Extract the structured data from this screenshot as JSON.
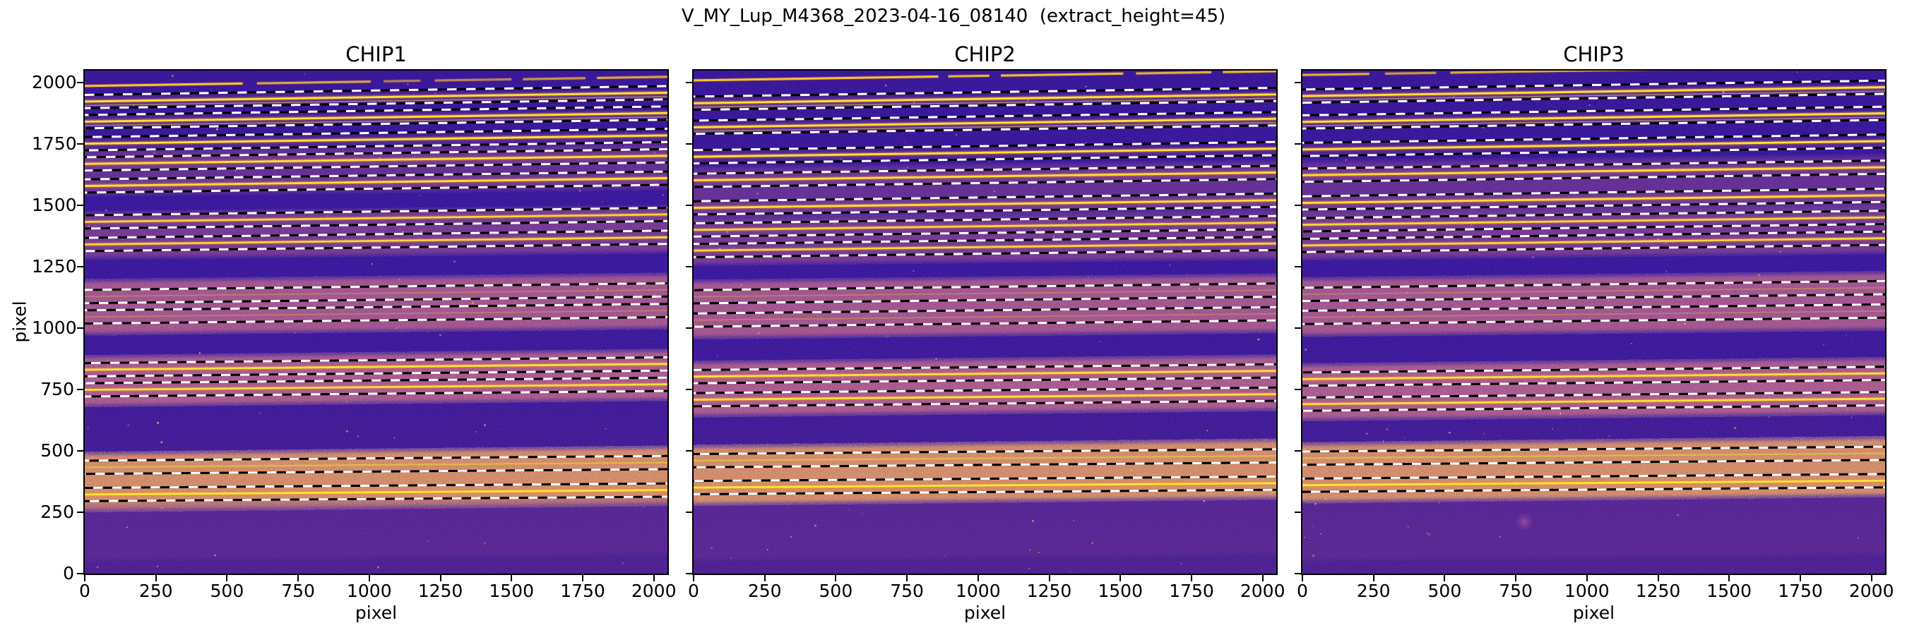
{
  "title": "V_MY_Lup_M4368_2023-04-16_08140  (extract_height=45)",
  "axes": {
    "xlabel": "pixel",
    "ylabel": "pixel",
    "xticks": [
      0,
      250,
      500,
      750,
      1000,
      1250,
      1500,
      1750,
      2000
    ],
    "yticks": [
      0,
      250,
      500,
      750,
      1000,
      1250,
      1500,
      1750,
      2000
    ],
    "xlim": [
      0,
      2048
    ],
    "ylim": [
      0,
      2048
    ]
  },
  "colors": {
    "figure_bg": "#ffffff",
    "text": "#000000",
    "detector_dark_top": "#2a0a90",
    "detector_dark_mid": "#2d0c94",
    "detector_purple_bottom": "#421687",
    "band_pink": "#b2518a",
    "band_orange": "#d9844f",
    "band_haze": "#6f2f9a",
    "trace_yellow": "#f9e52f",
    "trace_mid": "#e8c33f",
    "trace_faint": "#cf9e52",
    "trace_glow": "#ff8c2a",
    "partial_trace": "#f5c62c",
    "companion_trace": "#f0d34a",
    "dash_black": "#000000",
    "dash_white": "#ffffff",
    "blob_pink": "#a553a3",
    "speckle_warm": "#ffb860",
    "speckle_purple": "#8044d6",
    "speckle_dark": "#240540"
  },
  "chart_data": {
    "type": "heatmap",
    "colormap": "plasma",
    "extract_height": 45,
    "panels": [
      {
        "title": "CHIP1",
        "partial_trace": {
          "y": 1985,
          "segments": [
            [
              0,
              555,
              1
            ],
            [
              605,
              1005,
              0.8
            ],
            [
              1050,
              1180,
              0.55
            ],
            [
              1230,
              1500,
              0.6
            ],
            [
              1540,
              1760,
              0.7
            ],
            [
              1800,
              2048,
              0.8
            ]
          ]
        },
        "orders": [
          {
            "y": 1922,
            "b": 1,
            "c": 1,
            "h": 1
          },
          {
            "y": 1840,
            "b": 1,
            "c": 1,
            "h": 1
          },
          {
            "y": 1750,
            "b": 1,
            "h": 1
          },
          {
            "y": 1668,
            "b": 0.95,
            "h": 1
          },
          {
            "y": 1578,
            "b": 0.95,
            "h": 1
          },
          {
            "y": 1432,
            "b": 0.85
          },
          {
            "y": 1340,
            "b": 0.85
          },
          {
            "y": 1128,
            "b": 0.3
          },
          {
            "y": 1045,
            "b": 0.3
          },
          {
            "y": 830,
            "b": 0.95
          },
          {
            "y": 748,
            "b": 0.9
          },
          {
            "y": 433,
            "b": 0.45
          },
          {
            "y": 322,
            "b": 1
          }
        ],
        "bands": [
          {
            "y0": 1545,
            "y1": 1722,
            "color": "pink",
            "op": 0.3,
            "warm": 0.16,
            "dark": 0.15
          },
          {
            "y0": 1288,
            "y1": 1466,
            "color": "pink",
            "op": 0.42,
            "warm": 0.25,
            "dark": 0.2
          },
          {
            "y0": 980,
            "y1": 1188,
            "color": "pink",
            "op": 0.78,
            "warm": 0.5,
            "dark": 0.45
          },
          {
            "y0": 688,
            "y1": 878,
            "color": "pink",
            "op": 0.82,
            "warm": 0.6,
            "dark": 0.45
          },
          {
            "y0": 262,
            "y1": 483,
            "color": "orange",
            "op": 0.88,
            "warm": 0.95,
            "dark": 0.4
          },
          {
            "y0": 60,
            "y1": 287,
            "color": "haze",
            "op": 0.3,
            "warm": 0.08,
            "dark": 0.1
          }
        ]
      },
      {
        "title": "CHIP2",
        "partial_trace": {
          "y": 2008,
          "segments": [
            [
              0,
              860,
              1
            ],
            [
              895,
              1040,
              0.9
            ],
            [
              1080,
              1510,
              0.95
            ],
            [
              1555,
              1820,
              0.85
            ],
            [
              1860,
              2048,
              0.9
            ]
          ]
        },
        "orders": [
          {
            "y": 1915,
            "b": 1,
            "c": 1,
            "h": 1
          },
          {
            "y": 1817,
            "b": 1,
            "c": 1,
            "h": 1
          },
          {
            "y": 1697,
            "b": 1,
            "h": 1
          },
          {
            "y": 1601,
            "b": 0.95,
            "h": 1
          },
          {
            "y": 1489,
            "b": 0.95,
            "h": 1
          },
          {
            "y": 1399,
            "b": 0.85
          },
          {
            "y": 1315,
            "b": 0.85
          },
          {
            "y": 1127,
            "b": 0.3
          },
          {
            "y": 1032,
            "b": 0.3
          },
          {
            "y": 802,
            "b": 0.95
          },
          {
            "y": 708,
            "b": 0.95
          },
          {
            "y": 460,
            "b": 0.45
          },
          {
            "y": 350,
            "b": 1
          }
        ],
        "bands": [
          {
            "y0": 1455,
            "y1": 1650,
            "color": "pink",
            "op": 0.3,
            "warm": 0.16,
            "dark": 0.15
          },
          {
            "y0": 1262,
            "y1": 1442,
            "color": "pink",
            "op": 0.42,
            "warm": 0.25,
            "dark": 0.2
          },
          {
            "y0": 965,
            "y1": 1185,
            "color": "pink",
            "op": 0.78,
            "warm": 0.5,
            "dark": 0.45
          },
          {
            "y0": 648,
            "y1": 855,
            "color": "pink",
            "op": 0.82,
            "warm": 0.6,
            "dark": 0.45
          },
          {
            "y0": 288,
            "y1": 512,
            "color": "orange",
            "op": 0.88,
            "warm": 0.95,
            "dark": 0.4
          },
          {
            "y0": 60,
            "y1": 280,
            "color": "haze",
            "op": 0.3,
            "warm": 0.08,
            "dark": 0.1
          }
        ]
      },
      {
        "title": "CHIP3",
        "partial_trace": {
          "y": 2030,
          "segments": [
            [
              0,
              235,
              0.85
            ],
            [
              290,
              470,
              0.7
            ],
            [
              520,
              1300,
              0.8
            ],
            [
              1350,
              1630,
              0.85
            ],
            [
              1690,
              2048,
              0.9
            ]
          ]
        },
        "orders": [
          {
            "y": 1944,
            "b": 1,
            "c": 1,
            "h": 1
          },
          {
            "y": 1839,
            "b": 1,
            "c": 1,
            "h": 1
          },
          {
            "y": 1727,
            "b": 1,
            "h": 1
          },
          {
            "y": 1622,
            "b": 0.95,
            "h": 1
          },
          {
            "y": 1509,
            "b": 0.95,
            "h": 1
          },
          {
            "y": 1420,
            "b": 0.85
          },
          {
            "y": 1336,
            "b": 0.85
          },
          {
            "y": 1137,
            "b": 0.3
          },
          {
            "y": 1043,
            "b": 0.3
          },
          {
            "y": 792,
            "b": 0.95
          },
          {
            "y": 690,
            "b": 0.95
          },
          {
            "y": 470,
            "b": 0.45
          },
          {
            "y": 360,
            "b": 1
          }
        ],
        "bands": [
          {
            "y0": 1468,
            "y1": 1672,
            "color": "pink",
            "op": 0.3,
            "warm": 0.16,
            "dark": 0.15
          },
          {
            "y0": 1285,
            "y1": 1462,
            "color": "pink",
            "op": 0.42,
            "warm": 0.25,
            "dark": 0.2
          },
          {
            "y0": 975,
            "y1": 1195,
            "color": "pink",
            "op": 0.78,
            "warm": 0.5,
            "dark": 0.45
          },
          {
            "y0": 632,
            "y1": 845,
            "color": "pink",
            "op": 0.82,
            "warm": 0.6,
            "dark": 0.45
          },
          {
            "y0": 298,
            "y1": 522,
            "color": "orange",
            "op": 0.88,
            "warm": 0.95,
            "dark": 0.4
          },
          {
            "y0": 60,
            "y1": 290,
            "color": "haze",
            "op": 0.32,
            "warm": 0.08,
            "dark": 0.1
          }
        ],
        "blob": {
          "x": 780,
          "y": 210
        }
      }
    ]
  }
}
